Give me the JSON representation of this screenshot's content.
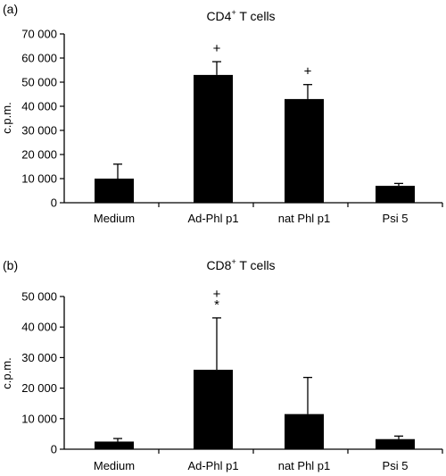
{
  "chart_data": [
    {
      "type": "bar",
      "panel_label": "(a)",
      "title": "CD4",
      "title_superscript": "+",
      "title_suffix": " T cells",
      "ylabel": "c.p.m.",
      "xlabel": "",
      "ylim": [
        0,
        70000
      ],
      "yticks": [
        0,
        10000,
        20000,
        30000,
        40000,
        50000,
        60000,
        70000
      ],
      "ytick_labels": [
        "0",
        "10 000",
        "20 000",
        "30 000",
        "40 000",
        "50 000",
        "60 000",
        "70 000"
      ],
      "categories": [
        "Medium",
        "Ad-Phl p1",
        "nat Phl p1",
        "Psi 5"
      ],
      "values": [
        10000,
        53000,
        43000,
        7000
      ],
      "errors": [
        6000,
        5500,
        6000,
        1000
      ],
      "annotations": [
        "",
        "+",
        "+",
        ""
      ],
      "bar_color": "#000000"
    },
    {
      "type": "bar",
      "panel_label": "(b)",
      "title": "CD8",
      "title_superscript": "+",
      "title_suffix": " T cells",
      "ylabel": "c.p.m.",
      "xlabel": "",
      "ylim": [
        0,
        50000
      ],
      "yticks": [
        0,
        10000,
        20000,
        30000,
        40000,
        50000
      ],
      "ytick_labels": [
        "0",
        "10 000",
        "20 000",
        "30 000",
        "40 000",
        "50 000"
      ],
      "categories": [
        "Medium",
        "Ad-Phl p1",
        "nat Phl p1",
        "Psi 5"
      ],
      "values": [
        2500,
        26000,
        11500,
        3300
      ],
      "errors": [
        1000,
        17000,
        12000,
        1000
      ],
      "annotations": [
        "",
        "+\n*",
        "",
        ""
      ],
      "bar_color": "#000000"
    }
  ]
}
